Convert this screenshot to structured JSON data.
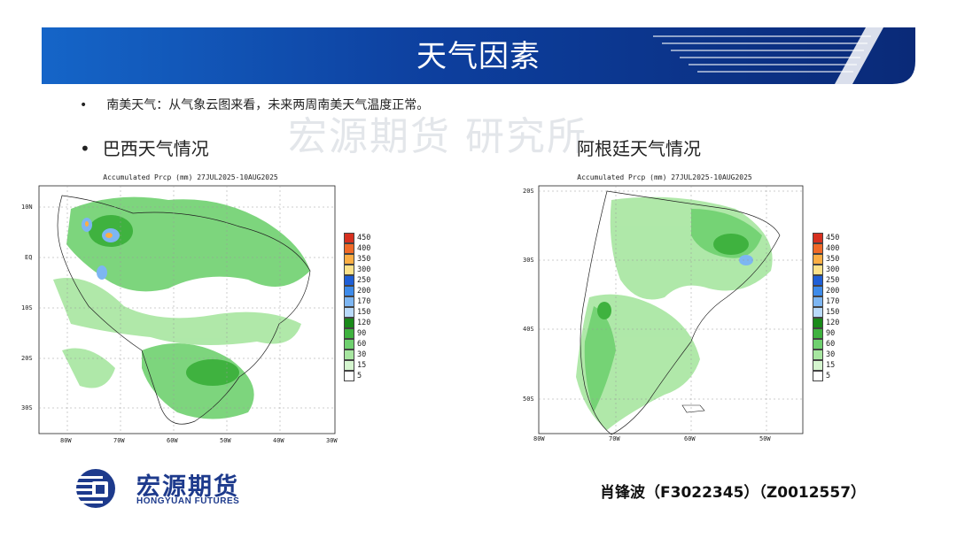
{
  "header": {
    "title": "天气因素"
  },
  "bullets": {
    "summary": "南美天气：从气象云图来看，未来两周南美天气温度正常。",
    "brazil_heading": "巴西天气情况",
    "argentina_heading": "阿根廷天气情况",
    "bullet_symbol": "•"
  },
  "watermark": "宏源期货 研究所",
  "maps": {
    "brazil": {
      "title": "Accumulated Prcp (mm) 27JUL2025-10AUG2025",
      "lat_labels": [
        "10N",
        "EQ",
        "10S",
        "20S",
        "30S"
      ],
      "lon_labels": [
        "80W",
        "70W",
        "60W",
        "50W",
        "40W",
        "30W"
      ]
    },
    "argentina": {
      "title": "Accumulated Prcp (mm) 27JUL2025-10AUG2025",
      "lat_labels": [
        "20S",
        "30S",
        "40S",
        "50S"
      ],
      "lon_labels": [
        "80W",
        "70W",
        "60W",
        "50W"
      ]
    }
  },
  "legend": {
    "levels": [
      "450",
      "400",
      "350",
      "300",
      "250",
      "200",
      "170",
      "150",
      "120",
      "90",
      "60",
      "30",
      "15",
      "5"
    ],
    "colors": [
      "#d7301f",
      "#f06a28",
      "#fcae44",
      "#fde28a",
      "#1f5fd6",
      "#3d8bea",
      "#7db6f2",
      "#b9dafa",
      "#1a8a1a",
      "#3fb23f",
      "#6fd06f",
      "#a7e6a0",
      "#d5f5cf",
      "#ffffff"
    ]
  },
  "branding": {
    "logo_cn": "宏源期货",
    "logo_en": "HONGYUAN FUTURES",
    "logo_color": "#1d3a8c"
  },
  "author": "肖锋波（F3022345）（Z0012557）",
  "colors": {
    "banner_dark": "#0b2a78",
    "banner_light": "#1a6fd0"
  }
}
